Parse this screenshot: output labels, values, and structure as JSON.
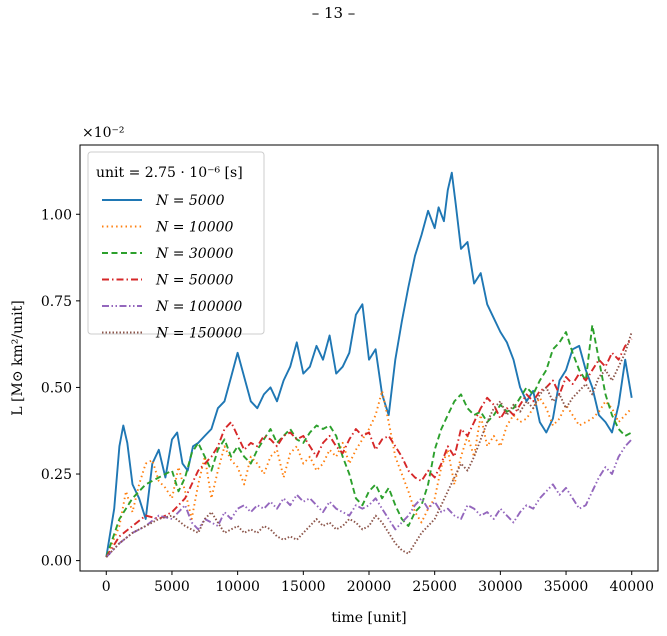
{
  "page": {
    "number_label": "– 13 –"
  },
  "chart_data": {
    "type": "line",
    "title": "",
    "xlabel": "time [unit]",
    "ylabel": "L [M⊙ km²/unit]",
    "y_offset_label": "×10⁻²",
    "xlim": [
      -2000,
      42000
    ],
    "ylim": [
      -0.03,
      1.2
    ],
    "xticks": [
      0,
      5000,
      10000,
      15000,
      20000,
      25000,
      30000,
      35000,
      40000
    ],
    "yticks": [
      0.0,
      0.25,
      0.5,
      0.75,
      1.0
    ],
    "ytick_labels": [
      "0.00",
      "0.25",
      "0.50",
      "0.75",
      "1.00"
    ],
    "grid": false,
    "legend": {
      "placement": "top-left",
      "title": "unit = 2.75 · 10⁻⁶ [s]"
    },
    "series": [
      {
        "name": "N = 5000",
        "color": "#1f77b4",
        "dash": "solid",
        "x": [
          0,
          600,
          1000,
          1300,
          1600,
          2000,
          2500,
          3000,
          3500,
          4000,
          4500,
          5000,
          5400,
          5800,
          6200,
          6600,
          7000,
          7500,
          8000,
          8500,
          9000,
          9500,
          10000,
          10500,
          11000,
          11500,
          12000,
          12500,
          13000,
          13500,
          14000,
          14500,
          15000,
          15500,
          16000,
          16500,
          17000,
          17500,
          18000,
          18500,
          19000,
          19500,
          20000,
          20500,
          21000,
          21500,
          22000,
          22500,
          23000,
          23500,
          24000,
          24500,
          25000,
          25300,
          25700,
          26000,
          26300,
          26600,
          27000,
          27500,
          28000,
          28500,
          29000,
          29500,
          30000,
          30500,
          31000,
          31500,
          32000,
          32500,
          33000,
          33500,
          34000,
          34500,
          35000,
          35500,
          36000,
          36500,
          37000,
          37500,
          38000,
          38500,
          39000,
          39500,
          40000
        ],
        "values": [
          0.01,
          0.15,
          0.33,
          0.39,
          0.34,
          0.22,
          0.18,
          0.12,
          0.28,
          0.32,
          0.24,
          0.35,
          0.37,
          0.28,
          0.26,
          0.33,
          0.34,
          0.36,
          0.38,
          0.44,
          0.46,
          0.53,
          0.6,
          0.53,
          0.46,
          0.44,
          0.48,
          0.5,
          0.46,
          0.52,
          0.56,
          0.63,
          0.54,
          0.56,
          0.62,
          0.58,
          0.65,
          0.54,
          0.56,
          0.6,
          0.71,
          0.74,
          0.58,
          0.61,
          0.48,
          0.42,
          0.58,
          0.69,
          0.79,
          0.88,
          0.94,
          1.01,
          0.96,
          1.02,
          0.98,
          1.07,
          1.12,
          1.03,
          0.9,
          0.92,
          0.8,
          0.83,
          0.74,
          0.7,
          0.66,
          0.63,
          0.58,
          0.5,
          0.46,
          0.49,
          0.4,
          0.37,
          0.41,
          0.52,
          0.55,
          0.61,
          0.62,
          0.55,
          0.5,
          0.42,
          0.4,
          0.37,
          0.45,
          0.58,
          0.47
        ]
      },
      {
        "name": "N = 10000",
        "color": "#ff7f0e",
        "dash": "dotted",
        "x": [
          0,
          1000,
          1500,
          2000,
          2500,
          3000,
          3500,
          4000,
          4500,
          5000,
          5500,
          6000,
          6500,
          7000,
          7500,
          8000,
          8500,
          9000,
          9500,
          10000,
          10500,
          11000,
          11500,
          12000,
          12500,
          13000,
          13500,
          14000,
          14500,
          15000,
          15500,
          16000,
          16500,
          17000,
          17500,
          18000,
          18500,
          19000,
          19500,
          20000,
          20500,
          21000,
          21500,
          22000,
          22500,
          23000,
          23500,
          24000,
          24500,
          25000,
          25500,
          26000,
          26500,
          27000,
          27500,
          28000,
          28500,
          29000,
          29500,
          30000,
          30500,
          31000,
          31500,
          32000,
          32500,
          33000,
          33500,
          34000,
          34500,
          35000,
          35500,
          36000,
          36500,
          37000,
          37500,
          38000,
          38500,
          39000,
          39500,
          40000
        ],
        "values": [
          0.01,
          0.1,
          0.2,
          0.14,
          0.22,
          0.28,
          0.29,
          0.23,
          0.21,
          0.18,
          0.27,
          0.2,
          0.12,
          0.22,
          0.3,
          0.18,
          0.26,
          0.33,
          0.29,
          0.27,
          0.22,
          0.3,
          0.28,
          0.25,
          0.3,
          0.32,
          0.24,
          0.31,
          0.33,
          0.28,
          0.3,
          0.26,
          0.28,
          0.32,
          0.3,
          0.34,
          0.28,
          0.32,
          0.35,
          0.38,
          0.42,
          0.49,
          0.4,
          0.3,
          0.25,
          0.2,
          0.14,
          0.11,
          0.15,
          0.18,
          0.27,
          0.32,
          0.22,
          0.3,
          0.36,
          0.3,
          0.42,
          0.33,
          0.36,
          0.33,
          0.39,
          0.42,
          0.4,
          0.41,
          0.44,
          0.47,
          0.44,
          0.39,
          0.41,
          0.45,
          0.42,
          0.39,
          0.4,
          0.41,
          0.43,
          0.46,
          0.44,
          0.4,
          0.42,
          0.44
        ]
      },
      {
        "name": "N = 30000",
        "color": "#2ca02c",
        "dash": "dashed",
        "x": [
          0,
          1000,
          2000,
          3000,
          4000,
          5000,
          5500,
          6000,
          6500,
          7000,
          7500,
          8000,
          8500,
          9000,
          9500,
          10000,
          10500,
          11000,
          11500,
          12000,
          12500,
          13000,
          13500,
          14000,
          14500,
          15000,
          15500,
          16000,
          16500,
          17000,
          17500,
          18000,
          18500,
          19000,
          19500,
          20000,
          20500,
          21000,
          21500,
          22000,
          22500,
          23000,
          23500,
          24000,
          24500,
          25000,
          25500,
          26000,
          26500,
          27000,
          27500,
          28000,
          28500,
          29000,
          29500,
          30000,
          30500,
          31000,
          31500,
          32000,
          32500,
          33000,
          33500,
          34000,
          34500,
          35000,
          35500,
          36000,
          36500,
          37000,
          37500,
          38000,
          38500,
          39000,
          39500,
          40000
        ],
        "values": [
          0.01,
          0.12,
          0.18,
          0.22,
          0.24,
          0.26,
          0.2,
          0.24,
          0.31,
          0.34,
          0.3,
          0.26,
          0.32,
          0.35,
          0.3,
          0.33,
          0.3,
          0.28,
          0.32,
          0.35,
          0.38,
          0.34,
          0.36,
          0.38,
          0.35,
          0.34,
          0.37,
          0.39,
          0.38,
          0.39,
          0.36,
          0.3,
          0.25,
          0.18,
          0.16,
          0.2,
          0.22,
          0.18,
          0.21,
          0.16,
          0.12,
          0.1,
          0.14,
          0.16,
          0.22,
          0.32,
          0.38,
          0.42,
          0.46,
          0.48,
          0.44,
          0.42,
          0.43,
          0.4,
          0.42,
          0.45,
          0.43,
          0.44,
          0.47,
          0.5,
          0.48,
          0.52,
          0.55,
          0.61,
          0.63,
          0.66,
          0.6,
          0.55,
          0.52,
          0.68,
          0.58,
          0.48,
          0.42,
          0.38,
          0.36,
          0.37
        ]
      },
      {
        "name": "N = 50000",
        "color": "#d62728",
        "dash": "dashdot",
        "x": [
          0,
          1000,
          2000,
          3000,
          4000,
          5000,
          6000,
          6500,
          7000,
          7500,
          8000,
          8500,
          9000,
          9500,
          10000,
          10500,
          11000,
          11500,
          12000,
          12500,
          13000,
          13500,
          14000,
          14500,
          15000,
          15500,
          16000,
          16500,
          17000,
          17500,
          18000,
          18500,
          19000,
          19500,
          20000,
          20500,
          21000,
          21500,
          22000,
          22500,
          23000,
          23500,
          24000,
          24500,
          25000,
          25500,
          26000,
          26500,
          27000,
          27500,
          28000,
          28500,
          29000,
          29500,
          30000,
          30500,
          31000,
          31500,
          32000,
          32500,
          33000,
          33500,
          34000,
          34500,
          35000,
          35500,
          36000,
          36500,
          37000,
          37500,
          38000,
          38500,
          39000,
          39500,
          40000
        ],
        "values": [
          0.01,
          0.07,
          0.1,
          0.13,
          0.12,
          0.14,
          0.18,
          0.22,
          0.26,
          0.28,
          0.3,
          0.33,
          0.38,
          0.4,
          0.36,
          0.32,
          0.34,
          0.33,
          0.36,
          0.35,
          0.33,
          0.36,
          0.37,
          0.35,
          0.36,
          0.33,
          0.3,
          0.34,
          0.36,
          0.33,
          0.31,
          0.35,
          0.38,
          0.36,
          0.37,
          0.32,
          0.35,
          0.36,
          0.33,
          0.3,
          0.26,
          0.24,
          0.23,
          0.26,
          0.24,
          0.28,
          0.33,
          0.3,
          0.38,
          0.36,
          0.4,
          0.44,
          0.47,
          0.45,
          0.41,
          0.44,
          0.42,
          0.45,
          0.48,
          0.46,
          0.49,
          0.5,
          0.52,
          0.48,
          0.53,
          0.51,
          0.54,
          0.52,
          0.55,
          0.58,
          0.56,
          0.6,
          0.58,
          0.62,
          0.64
        ]
      },
      {
        "name": "N = 100000",
        "color": "#9467bd",
        "dash": "dashdotdot",
        "x": [
          0,
          1000,
          2000,
          3000,
          4000,
          5000,
          5500,
          6000,
          6500,
          7000,
          7500,
          8000,
          8500,
          9000,
          9500,
          10000,
          10500,
          11000,
          11500,
          12000,
          12500,
          13000,
          13500,
          14000,
          14500,
          15000,
          15500,
          16000,
          16500,
          17000,
          17500,
          18000,
          18500,
          19000,
          19500,
          20000,
          20500,
          21000,
          21500,
          22000,
          22500,
          23000,
          23500,
          24000,
          24500,
          25000,
          25500,
          26000,
          26500,
          27000,
          27500,
          28000,
          28500,
          29000,
          29500,
          30000,
          30500,
          31000,
          31500,
          32000,
          32500,
          33000,
          33500,
          34000,
          34500,
          35000,
          35500,
          36000,
          36500,
          37000,
          37500,
          38000,
          38500,
          39000,
          39500,
          40000
        ],
        "values": [
          0.01,
          0.05,
          0.08,
          0.1,
          0.13,
          0.12,
          0.14,
          0.16,
          0.11,
          0.09,
          0.12,
          0.11,
          0.1,
          0.14,
          0.12,
          0.15,
          0.16,
          0.14,
          0.16,
          0.15,
          0.17,
          0.15,
          0.18,
          0.16,
          0.19,
          0.17,
          0.18,
          0.16,
          0.14,
          0.17,
          0.15,
          0.14,
          0.13,
          0.16,
          0.15,
          0.16,
          0.18,
          0.15,
          0.12,
          0.09,
          0.11,
          0.13,
          0.16,
          0.18,
          0.15,
          0.17,
          0.14,
          0.15,
          0.13,
          0.12,
          0.16,
          0.15,
          0.13,
          0.14,
          0.12,
          0.15,
          0.13,
          0.11,
          0.14,
          0.16,
          0.15,
          0.18,
          0.2,
          0.22,
          0.19,
          0.21,
          0.18,
          0.15,
          0.16,
          0.2,
          0.24,
          0.27,
          0.25,
          0.3,
          0.33,
          0.35
        ]
      },
      {
        "name": "N = 150000",
        "color": "#8c564b",
        "dash": "densedot",
        "x": [
          0,
          1000,
          2000,
          3000,
          4000,
          5000,
          6000,
          7000,
          7500,
          8000,
          8500,
          9000,
          9500,
          10000,
          10500,
          11000,
          11500,
          12000,
          12500,
          13000,
          13500,
          14000,
          14500,
          15000,
          15500,
          16000,
          16500,
          17000,
          17500,
          18000,
          18500,
          19000,
          19500,
          20000,
          20500,
          21000,
          21500,
          22000,
          22500,
          23000,
          23500,
          24000,
          24500,
          25000,
          25500,
          26000,
          26500,
          27000,
          27500,
          28000,
          28500,
          29000,
          29500,
          30000,
          30500,
          31000,
          31500,
          32000,
          32500,
          33000,
          33500,
          34000,
          34500,
          35000,
          35500,
          36000,
          36500,
          37000,
          37500,
          38000,
          38500,
          39000,
          39500,
          40000
        ],
        "values": [
          0.01,
          0.05,
          0.08,
          0.1,
          0.12,
          0.13,
          0.1,
          0.08,
          0.12,
          0.14,
          0.11,
          0.08,
          0.09,
          0.1,
          0.08,
          0.09,
          0.08,
          0.1,
          0.09,
          0.07,
          0.06,
          0.07,
          0.06,
          0.08,
          0.1,
          0.12,
          0.1,
          0.11,
          0.09,
          0.1,
          0.12,
          0.11,
          0.09,
          0.1,
          0.13,
          0.11,
          0.08,
          0.05,
          0.03,
          0.02,
          0.05,
          0.08,
          0.1,
          0.12,
          0.16,
          0.2,
          0.24,
          0.28,
          0.26,
          0.3,
          0.35,
          0.4,
          0.44,
          0.46,
          0.42,
          0.45,
          0.43,
          0.46,
          0.44,
          0.48,
          0.5,
          0.46,
          0.48,
          0.44,
          0.47,
          0.49,
          0.51,
          0.48,
          0.53,
          0.55,
          0.52,
          0.56,
          0.6,
          0.66
        ]
      }
    ]
  }
}
